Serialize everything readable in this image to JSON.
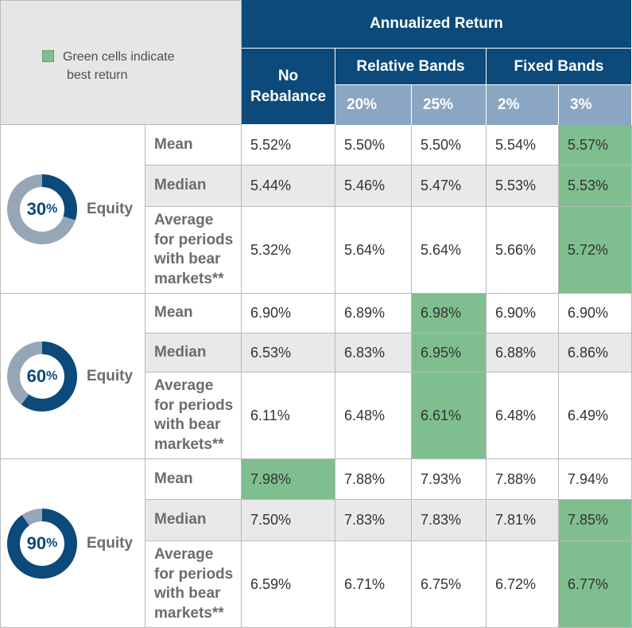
{
  "legend": {
    "text_line1": "Green cells indicate",
    "text_line2": "best return",
    "swatch_color": "#7fbf8f"
  },
  "header": {
    "annualized": "Annualized Return",
    "no_rebalance_line1": "No",
    "no_rebalance_line2": "Rebalance",
    "relative_bands": "Relative Bands",
    "fixed_bands": "Fixed Bands",
    "columns": [
      "20%",
      "25%",
      "2%",
      "3%"
    ]
  },
  "colors": {
    "header_dark": "#0b4a7a",
    "header_light": "#8aa6c2",
    "best": "#7fbf8f",
    "ring_gray": "#97a6b6"
  },
  "groups": [
    {
      "equity_pct": "30",
      "pct_sign": "%",
      "equity_label": "Equity",
      "rows": [
        {
          "label": "Mean",
          "values": [
            "5.52%",
            "5.50%",
            "5.50%",
            "5.54%",
            "5.57%"
          ],
          "best": [
            false,
            false,
            false,
            false,
            true
          ]
        },
        {
          "label": "Median",
          "values": [
            "5.44%",
            "5.46%",
            "5.47%",
            "5.53%",
            "5.53%"
          ],
          "best": [
            false,
            false,
            false,
            false,
            true
          ]
        },
        {
          "label_lines": [
            "Average",
            "for periods",
            "with bear",
            "markets**"
          ],
          "values": [
            "5.32%",
            "5.64%",
            "5.64%",
            "5.66%",
            "5.72%"
          ],
          "best": [
            false,
            false,
            false,
            false,
            true
          ]
        }
      ]
    },
    {
      "equity_pct": "60",
      "pct_sign": "%",
      "equity_label": "Equity",
      "rows": [
        {
          "label": "Mean",
          "values": [
            "6.90%",
            "6.89%",
            "6.98%",
            "6.90%",
            "6.90%"
          ],
          "best": [
            false,
            false,
            true,
            false,
            false
          ]
        },
        {
          "label": "Median",
          "values": [
            "6.53%",
            "6.83%",
            "6.95%",
            "6.88%",
            "6.86%"
          ],
          "best": [
            false,
            false,
            true,
            false,
            false
          ]
        },
        {
          "label_lines": [
            "Average",
            "for periods",
            "with bear",
            "markets**"
          ],
          "values": [
            "6.11%",
            "6.48%",
            "6.61%",
            "6.48%",
            "6.49%"
          ],
          "best": [
            false,
            false,
            true,
            false,
            false
          ]
        }
      ]
    },
    {
      "equity_pct": "90",
      "pct_sign": "%",
      "equity_label": "Equity",
      "rows": [
        {
          "label": "Mean",
          "values": [
            "7.98%",
            "7.88%",
            "7.93%",
            "7.88%",
            "7.94%"
          ],
          "best": [
            true,
            false,
            false,
            false,
            false
          ]
        },
        {
          "label": "Median",
          "values": [
            "7.50%",
            "7.83%",
            "7.83%",
            "7.81%",
            "7.85%"
          ],
          "best": [
            false,
            false,
            false,
            false,
            true
          ]
        },
        {
          "label_lines": [
            "Average",
            "for periods",
            "with bear",
            "markets**"
          ],
          "values": [
            "6.59%",
            "6.71%",
            "6.75%",
            "6.72%",
            "6.77%"
          ],
          "best": [
            false,
            false,
            false,
            false,
            true
          ]
        }
      ]
    }
  ]
}
